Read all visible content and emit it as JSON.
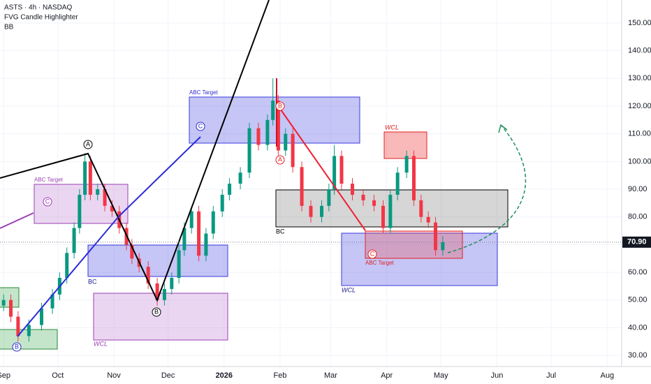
{
  "chart_data": {
    "type": "candlestick",
    "title": "ASTS · 4h · NASDAQ",
    "subtitle": "FVG Candle Highlighter",
    "indicator": "BB",
    "x": [
      0,
      4,
      8,
      14,
      21,
      27,
      31,
      35,
      39,
      42,
      45,
      48,
      52,
      56,
      60,
      64,
      68,
      71,
      75,
      80,
      85,
      89,
      93,
      97,
      100,
      104,
      108,
      112,
      116,
      121,
      125,
      131,
      136,
      141,
      146,
      149,
      152,
      156,
      160,
      165,
      170,
      176,
      180,
      183,
      187,
      193,
      199,
      205,
      210,
      214,
      218,
      223,
      227,
      231,
      235,
      239,
      243
    ],
    "open": [
      48,
      50,
      44,
      37,
      41,
      47,
      52,
      58,
      67,
      76,
      88,
      100,
      88,
      90,
      84,
      82,
      76,
      70,
      65,
      62,
      56,
      50,
      54,
      58,
      68,
      76,
      82,
      66,
      74,
      82,
      88,
      92,
      96,
      112,
      106,
      115,
      122,
      104,
      110,
      98,
      84,
      80,
      84,
      90,
      102,
      92,
      88,
      86,
      84,
      76,
      88,
      96,
      102,
      86,
      80,
      78,
      68
    ],
    "high": [
      52,
      52,
      46,
      43,
      49,
      54,
      60,
      69,
      78,
      90,
      103,
      102,
      92,
      92,
      86,
      84,
      78,
      72,
      67,
      64,
      58,
      56,
      60,
      70,
      78,
      84,
      84,
      76,
      84,
      90,
      94,
      98,
      114,
      114,
      117,
      130,
      124,
      112,
      112,
      100,
      86,
      86,
      92,
      106,
      104,
      94,
      90,
      88,
      86,
      90,
      98,
      104,
      104,
      88,
      82,
      80,
      73
    ],
    "low": [
      46,
      42,
      35,
      35,
      39,
      45,
      50,
      56,
      65,
      74,
      86,
      86,
      86,
      82,
      80,
      74,
      68,
      63,
      60,
      54,
      48,
      48,
      52,
      56,
      66,
      74,
      64,
      64,
      72,
      80,
      86,
      90,
      94,
      104,
      104,
      113,
      102,
      102,
      96,
      82,
      78,
      78,
      82,
      88,
      90,
      86,
      84,
      82,
      74,
      74,
      86,
      94,
      84,
      78,
      76,
      66,
      66
    ],
    "close": [
      50,
      44,
      37,
      41,
      47,
      52,
      58,
      67,
      76,
      88,
      100,
      88,
      90,
      84,
      82,
      76,
      70,
      65,
      62,
      56,
      50,
      54,
      58,
      68,
      76,
      82,
      66,
      74,
      82,
      88,
      92,
      96,
      112,
      106,
      115,
      122,
      104,
      110,
      98,
      84,
      80,
      84,
      90,
      102,
      92,
      88,
      86,
      84,
      76,
      88,
      96,
      102,
      86,
      80,
      78,
      68,
      70.9
    ],
    "up_color": "#089981",
    "down_color": "#f23645",
    "xlim": [
      -2,
      342
    ],
    "xticks": [
      {
        "value": 0,
        "label": "Sep"
      },
      {
        "value": 30,
        "label": "Oct"
      },
      {
        "value": 61,
        "label": "Nov"
      },
      {
        "value": 91,
        "label": "Dec"
      },
      {
        "value": 122,
        "label": "2026"
      },
      {
        "value": 153,
        "label": "Feb"
      },
      {
        "value": 181,
        "label": "Mar"
      },
      {
        "value": 212,
        "label": "Apr"
      },
      {
        "value": 242,
        "label": "May"
      },
      {
        "value": 273,
        "label": "Jun"
      },
      {
        "value": 303,
        "label": "Jul"
      },
      {
        "value": 334,
        "label": "Aug"
      }
    ],
    "ylim": [
      26,
      158.3
    ],
    "yticks": [
      {
        "value": 30,
        "label": "30.00"
      },
      {
        "value": 40,
        "label": "40.00"
      },
      {
        "value": 50,
        "label": "50.00"
      },
      {
        "value": 60,
        "label": "60.00"
      },
      {
        "value": 70,
        "label": "70.00"
      },
      {
        "value": 80,
        "label": "80.00"
      },
      {
        "value": 90,
        "label": "90.00"
      },
      {
        "value": 100,
        "label": "100.00"
      },
      {
        "value": 110,
        "label": "110.00"
      },
      {
        "value": 120,
        "label": "120.00"
      },
      {
        "value": 130,
        "label": "130.00"
      },
      {
        "value": 140,
        "label": "140.00"
      },
      {
        "value": 150,
        "label": "150.00"
      }
    ],
    "last_price": {
      "value": 70.9,
      "label": "70.90"
    },
    "grid": true,
    "annotations": [
      "ABC Target",
      "C",
      "ABC Target",
      "C",
      "BC",
      "WCL",
      "A",
      "B",
      "B",
      "BC",
      "WCL",
      "WCL",
      "ABC Target",
      "C",
      "B",
      "A"
    ]
  }
}
